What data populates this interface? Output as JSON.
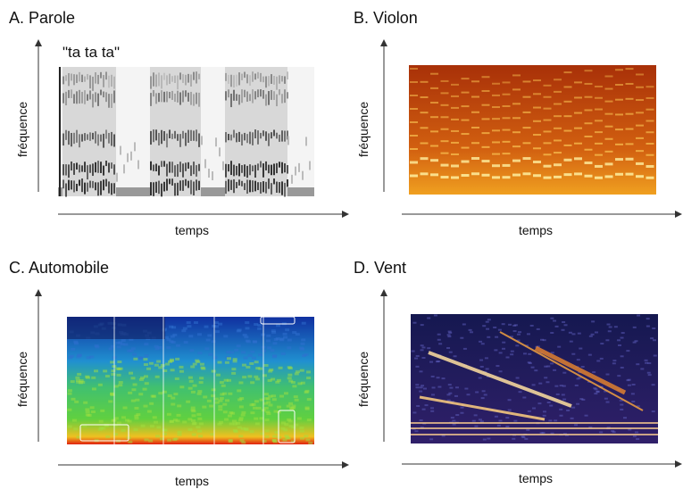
{
  "panels": [
    {
      "title": "A. Parole",
      "annotation": "\"ta ta ta\"",
      "y_label": "fréquence",
      "x_label": "temps"
    },
    {
      "title": "B. Violon",
      "y_label": "fréquence",
      "x_label": "temps"
    },
    {
      "title": "C. Automobile",
      "y_label": "fréquence",
      "x_label": "temps"
    },
    {
      "title": "D. Vent",
      "y_label": "fréquence",
      "x_label": "temps"
    }
  ]
}
